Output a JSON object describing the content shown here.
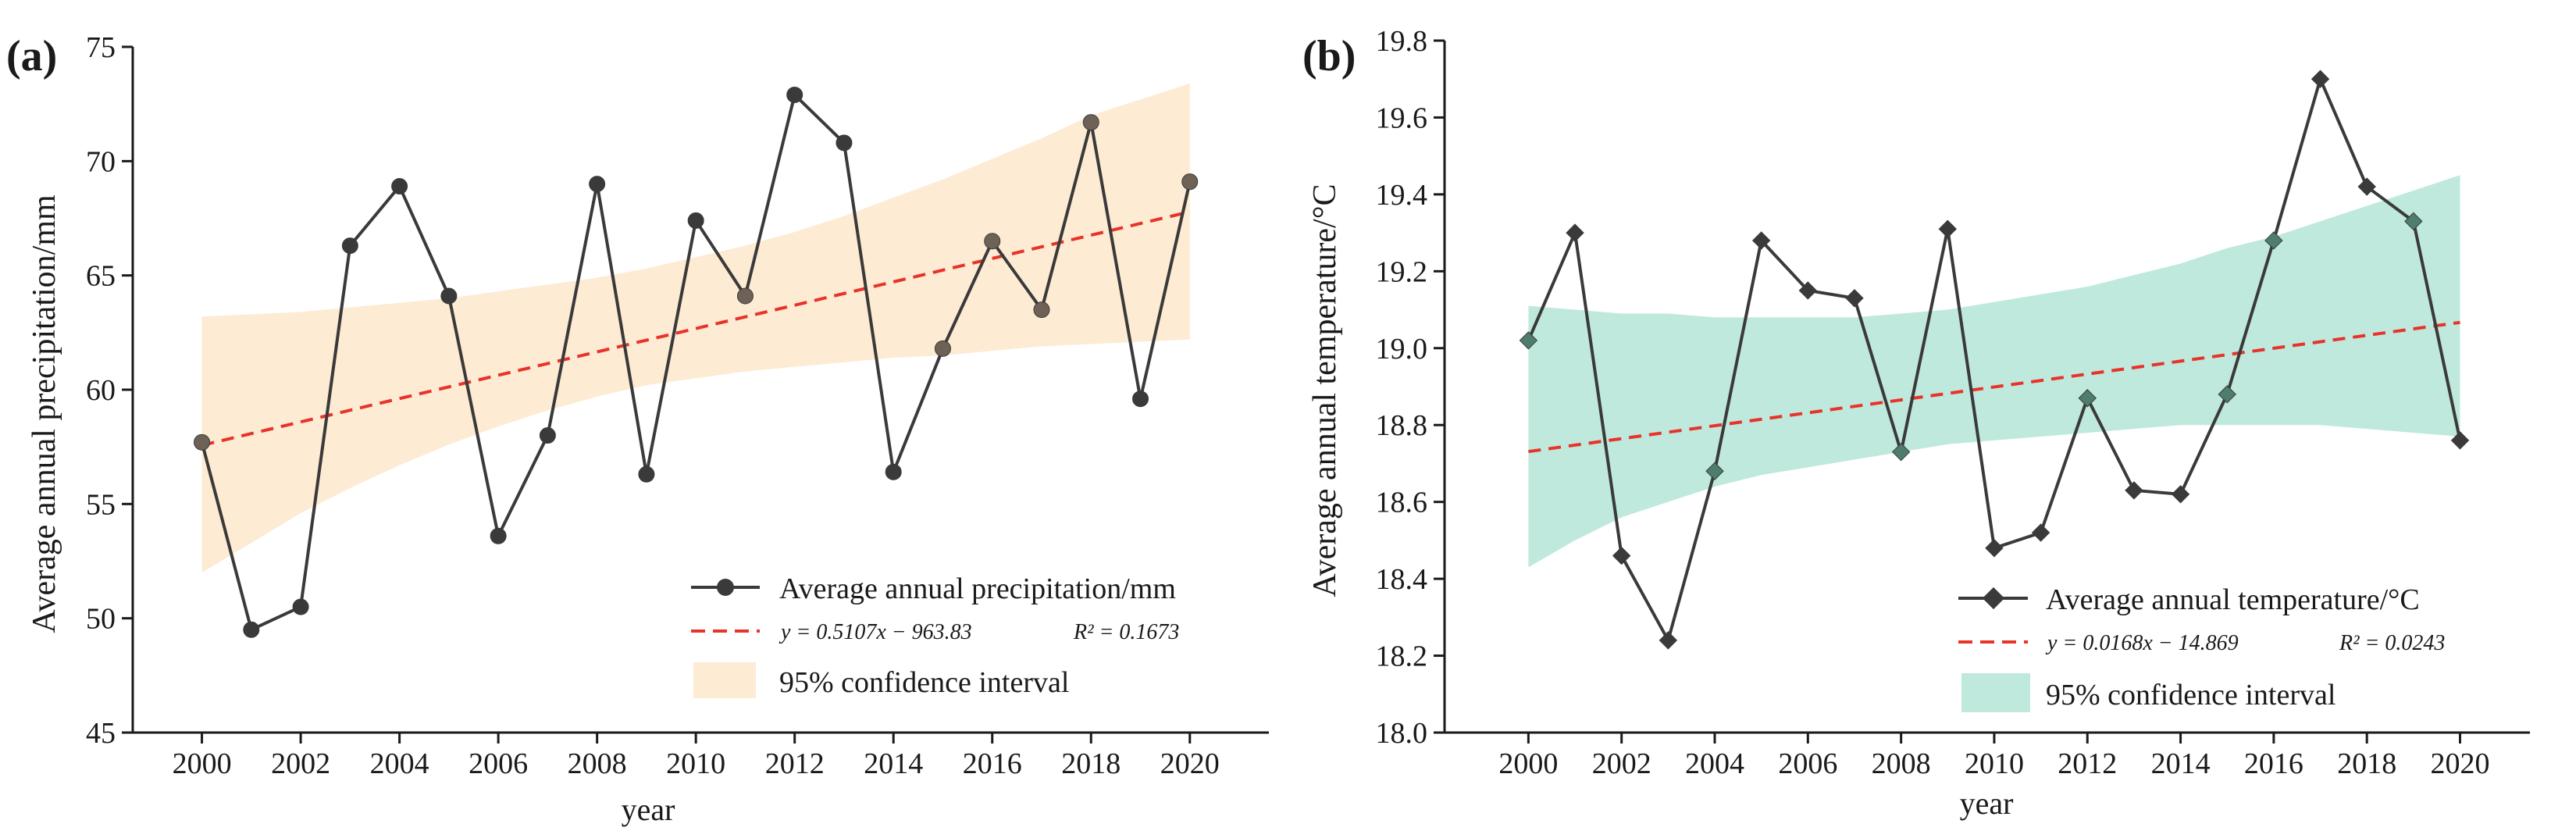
{
  "colors": {
    "line": "#3a3a3a",
    "fit": "#e8332a",
    "band_a": "#fdebd3",
    "band_b": "#bfe9dc",
    "marker_a_inside": "#6e6257",
    "marker_b_inside": "#4f7d6d"
  },
  "chart_data": [
    {
      "panel_label": "(a)",
      "type": "line",
      "x": [
        2000,
        2001,
        2002,
        2003,
        2004,
        2005,
        2006,
        2007,
        2008,
        2009,
        2010,
        2011,
        2012,
        2013,
        2014,
        2015,
        2016,
        2017,
        2018,
        2019,
        2020
      ],
      "values": [
        57.7,
        49.5,
        50.5,
        66.3,
        68.9,
        64.1,
        53.6,
        58.0,
        69.0,
        56.3,
        67.4,
        64.1,
        72.9,
        70.8,
        56.4,
        61.8,
        66.5,
        63.5,
        71.7,
        59.6,
        69.1
      ],
      "fit": {
        "slope": 0.5107,
        "intercept": -963.83
      },
      "ci_lower": [
        52.0,
        53.3,
        54.6,
        55.7,
        56.7,
        57.6,
        58.4,
        59.1,
        59.7,
        60.2,
        60.5,
        60.8,
        61.0,
        61.2,
        61.4,
        61.5,
        61.7,
        61.9,
        62.0,
        62.1,
        62.2
      ],
      "ci_upper": [
        63.2,
        63.3,
        63.4,
        63.6,
        63.8,
        64.0,
        64.3,
        64.6,
        64.9,
        65.3,
        65.8,
        66.3,
        66.9,
        67.6,
        68.4,
        69.2,
        70.1,
        71.0,
        72.0,
        72.7,
        73.4
      ],
      "xlabel": "year",
      "ylabel": "Average annual precipitation/mm",
      "xlim": [
        1998.6,
        2021.6
      ],
      "ylim": [
        45,
        75
      ],
      "xticks": [
        2000,
        2002,
        2004,
        2006,
        2008,
        2010,
        2012,
        2014,
        2016,
        2018,
        2020
      ],
      "yticks": [
        45,
        50,
        55,
        60,
        65,
        70,
        75
      ],
      "ytick_labels": [
        "45",
        "50",
        "55",
        "60",
        "65",
        "70",
        "75"
      ],
      "legend": {
        "placement": "bottom-right",
        "series_label": "Average annual precipitation/mm",
        "fit_eq": "y = 0.5107x − 963.83",
        "fit_r2": "R² = 0.1673",
        "ci_label": "95% confidence interval"
      }
    },
    {
      "panel_label": "(b)",
      "type": "line",
      "x": [
        2000,
        2001,
        2002,
        2003,
        2004,
        2005,
        2006,
        2007,
        2008,
        2009,
        2010,
        2011,
        2012,
        2013,
        2014,
        2015,
        2016,
        2017,
        2018,
        2019,
        2020
      ],
      "values": [
        19.02,
        19.3,
        18.46,
        18.24,
        18.68,
        19.28,
        19.15,
        19.13,
        18.73,
        19.31,
        18.48,
        18.52,
        18.87,
        18.63,
        18.62,
        18.88,
        19.28,
        19.7,
        19.42,
        19.33,
        18.76
      ],
      "fit": {
        "slope": 0.0168,
        "intercept": -14.869
      },
      "ci_lower": [
        18.43,
        18.5,
        18.56,
        18.6,
        18.64,
        18.67,
        18.69,
        18.71,
        18.73,
        18.75,
        18.76,
        18.77,
        18.78,
        18.79,
        18.8,
        18.8,
        18.8,
        18.8,
        18.79,
        18.78,
        18.77
      ],
      "ci_upper": [
        19.11,
        19.1,
        19.09,
        19.09,
        19.08,
        19.08,
        19.08,
        19.08,
        19.09,
        19.1,
        19.12,
        19.14,
        19.16,
        19.19,
        19.22,
        19.26,
        19.29,
        19.33,
        19.37,
        19.41,
        19.45
      ],
      "xlabel": "year",
      "ylabel": "Average annual temperature/°C",
      "xlim": [
        1998.2,
        2021.5
      ],
      "ylim": [
        18.0,
        19.8
      ],
      "xticks": [
        2000,
        2002,
        2004,
        2006,
        2008,
        2010,
        2012,
        2014,
        2016,
        2018,
        2020
      ],
      "yticks": [
        18.0,
        18.2,
        18.4,
        18.6,
        18.8,
        19.0,
        19.2,
        19.4,
        19.6,
        19.8
      ],
      "ytick_labels": [
        "18.0",
        "18.2",
        "18.4",
        "18.6",
        "18.8",
        "19.0",
        "19.2",
        "19.4",
        "19.6",
        "19.8"
      ],
      "legend": {
        "placement": "bottom-right",
        "series_label": "Average annual temperature/°C",
        "fit_eq": "y = 0.0168x − 14.869",
        "fit_r2": "R² = 0.0243",
        "ci_label": "95% confidence interval"
      }
    }
  ]
}
